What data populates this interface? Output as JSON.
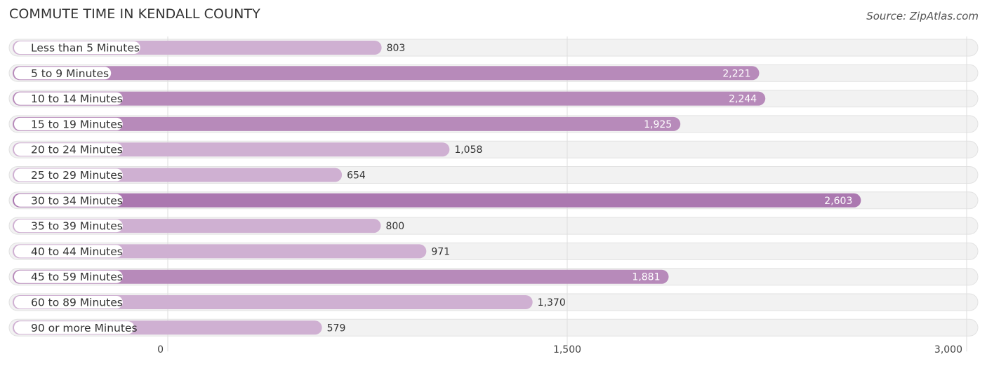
{
  "header": {
    "title": "COMMUTE TIME IN KENDALL COUNTY",
    "source_prefix": "Source: ",
    "source_name": "ZipAtlas.com"
  },
  "colors": {
    "bar_light": "#cfb0d2",
    "bar_mid": "#b78aba",
    "bar_dark": "#ab78b0"
  },
  "chart_data": {
    "type": "bar",
    "orientation": "horizontal",
    "title": "COMMUTE TIME IN KENDALL COUNTY",
    "xlabel": "",
    "ylabel": "",
    "xlim": [
      0,
      3000
    ],
    "ticks": [
      0,
      1500,
      3000
    ],
    "tick_labels": [
      "0",
      "1,500",
      "3,000"
    ],
    "grid": true,
    "categories": [
      "Less than 5 Minutes",
      "5 to 9 Minutes",
      "10 to 14 Minutes",
      "15 to 19 Minutes",
      "20 to 24 Minutes",
      "25 to 29 Minutes",
      "30 to 34 Minutes",
      "35 to 39 Minutes",
      "40 to 44 Minutes",
      "45 to 59 Minutes",
      "60 to 89 Minutes",
      "90 or more Minutes"
    ],
    "values": [
      803,
      2221,
      2244,
      1925,
      1058,
      654,
      2603,
      800,
      971,
      1881,
      1370,
      579
    ],
    "value_labels": [
      "803",
      "2,221",
      "2,244",
      "1,925",
      "1,058",
      "654",
      "2,603",
      "800",
      "971",
      "1,881",
      "1,370",
      "579"
    ]
  }
}
